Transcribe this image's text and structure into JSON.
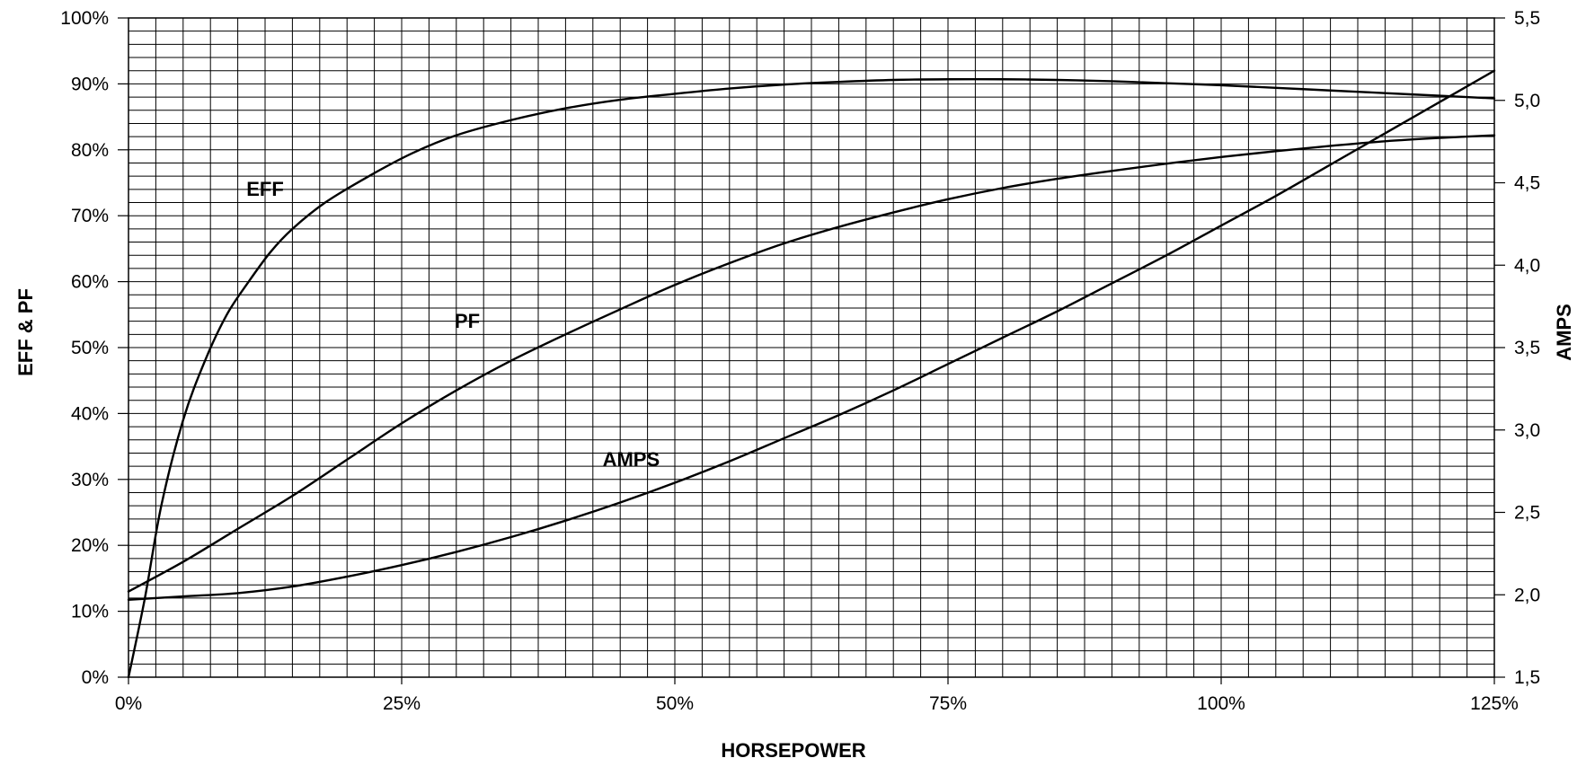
{
  "chart_data": {
    "type": "line",
    "xlabel": "HORSEPOWER",
    "ylabel": "EFF & PF",
    "y2label": "AMPS",
    "xlim": [
      0,
      125
    ],
    "ylim": [
      0,
      100
    ],
    "y2lim": [
      1.5,
      5.5
    ],
    "grid": true,
    "x_ticks": [
      "0%",
      "25%",
      "50%",
      "75%",
      "100%",
      "125%"
    ],
    "y_ticks": [
      "0%",
      "10%",
      "20%",
      "30%",
      "40%",
      "50%",
      "60%",
      "70%",
      "80%",
      "90%",
      "100%"
    ],
    "y2_ticks": [
      "1,5",
      "2,0",
      "2,5",
      "3,0",
      "3,5",
      "4,0",
      "4,5",
      "5,0",
      "5,5"
    ],
    "series": [
      {
        "name": "EFF",
        "axis": "left",
        "x": [
          0,
          1.5,
          3,
          5,
          7,
          9,
          11,
          13,
          15,
          18,
          22,
          26,
          30,
          35,
          40,
          45,
          50,
          55,
          60,
          65,
          70,
          75,
          80,
          85,
          90,
          95,
          100,
          105,
          110,
          115,
          120,
          125
        ],
        "values": [
          0,
          12,
          26,
          39,
          48,
          55,
          60,
          64.5,
          68,
          72,
          76,
          79.5,
          82.2,
          84.5,
          86.3,
          87.6,
          88.5,
          89.3,
          89.9,
          90.3,
          90.6,
          90.7,
          90.7,
          90.6,
          90.4,
          90.1,
          89.8,
          89.4,
          89,
          88.6,
          88.2,
          87.8
        ]
      },
      {
        "name": "PF",
        "axis": "left",
        "x": [
          0,
          5,
          10,
          15,
          20,
          25,
          30,
          35,
          40,
          45,
          50,
          55,
          60,
          65,
          70,
          75,
          80,
          85,
          90,
          95,
          100,
          105,
          110,
          115,
          120,
          125
        ],
        "values": [
          13,
          17.5,
          22.5,
          27.5,
          33,
          38.5,
          43.5,
          48,
          52,
          55.8,
          59.5,
          62.8,
          65.8,
          68.3,
          70.5,
          72.5,
          74.2,
          75.6,
          76.8,
          77.9,
          78.9,
          79.8,
          80.6,
          81.3,
          81.8,
          82.2
        ]
      },
      {
        "name": "AMPS",
        "axis": "right",
        "x": [
          0,
          5,
          10,
          15,
          20,
          25,
          30,
          35,
          40,
          45,
          50,
          55,
          60,
          65,
          70,
          75,
          80,
          85,
          90,
          95,
          100,
          105,
          110,
          115,
          120,
          125
        ],
        "values": [
          1.97,
          1.99,
          2.01,
          2.05,
          2.11,
          2.18,
          2.26,
          2.35,
          2.45,
          2.56,
          2.68,
          2.81,
          2.95,
          3.09,
          3.24,
          3.4,
          3.56,
          3.72,
          3.89,
          4.06,
          4.24,
          4.42,
          4.61,
          4.8,
          4.99,
          5.18
        ]
      }
    ],
    "annotations": [
      {
        "text": "EFF",
        "x": 12.5,
        "y": 73
      },
      {
        "text": "PF",
        "x": 31,
        "y": 53
      },
      {
        "text": "AMPS",
        "x": 46,
        "y": 32
      }
    ]
  }
}
